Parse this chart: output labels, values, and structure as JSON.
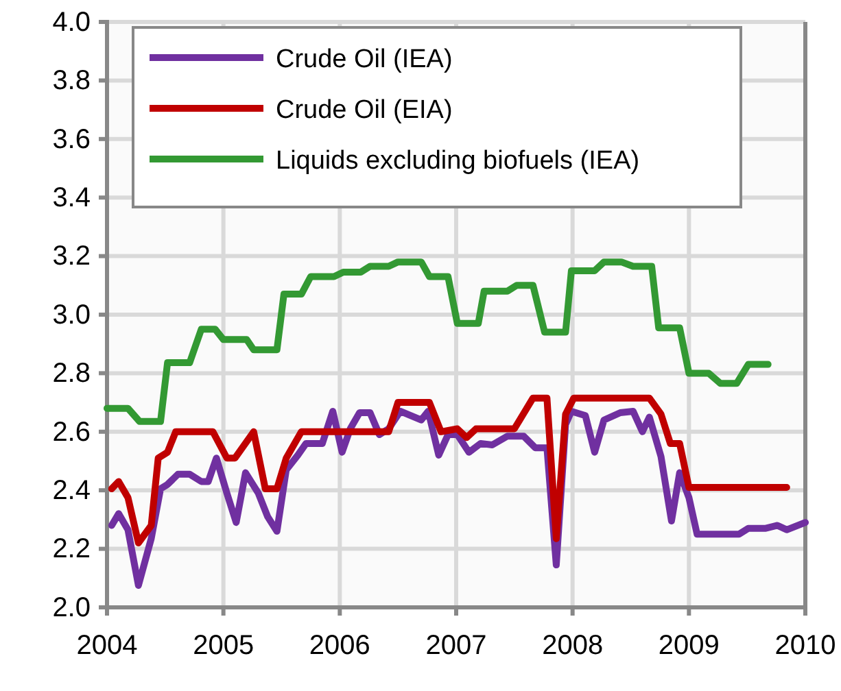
{
  "chart_data": {
    "type": "line",
    "xlim": [
      2004,
      2010
    ],
    "xticks": [
      2004,
      2005,
      2006,
      2007,
      2008,
      2009,
      2010
    ],
    "ylim": [
      2.0,
      4.0
    ],
    "yticks": [
      {
        "value": 2.0,
        "label": "2.0"
      },
      {
        "value": 2.2,
        "label": "2.2"
      },
      {
        "value": 2.4,
        "label": "2.4"
      },
      {
        "value": 2.6,
        "label": "2.6"
      },
      {
        "value": 2.8,
        "label": "2.8"
      },
      {
        "value": 3.0,
        "label": "3.0"
      },
      {
        "value": 3.2,
        "label": "3.2"
      },
      {
        "value": 3.4,
        "label": "3.4"
      },
      {
        "value": 3.6,
        "label": "3.6"
      },
      {
        "value": 3.8,
        "label": "3.8"
      },
      {
        "value": 4.0,
        "label": "4.0"
      }
    ],
    "grid": true,
    "legend": "top",
    "marker": "none",
    "line_style": "solid",
    "series": [
      {
        "name": "Crude Oil (IEA)",
        "color": "#7030a0",
        "x": [
          2004.04,
          2004.1,
          2004.18,
          2004.27,
          2004.38,
          2004.46,
          2004.52,
          2004.61,
          2004.71,
          2004.81,
          2004.87,
          2004.94,
          2005.03,
          2005.11,
          2005.19,
          2005.3,
          2005.38,
          2005.46,
          2005.54,
          2005.64,
          2005.71,
          2005.85,
          2005.94,
          2006.02,
          2006.09,
          2006.17,
          2006.26,
          2006.34,
          2006.42,
          2006.52,
          2006.7,
          2006.76,
          2006.85,
          2006.93,
          2007.01,
          2007.11,
          2007.21,
          2007.31,
          2007.44,
          2007.58,
          2007.68,
          2007.78,
          2007.86,
          2007.94,
          2007.99,
          2008.11,
          2008.19,
          2008.27,
          2008.41,
          2008.52,
          2008.6,
          2008.66,
          2008.76,
          2008.85,
          2008.92,
          2009.0,
          2009.07,
          2009.43,
          2009.51,
          2009.66,
          2009.76,
          2009.84,
          2010.0
        ],
        "values": [
          2.28,
          2.32,
          2.265,
          2.075,
          2.235,
          2.405,
          2.42,
          2.455,
          2.455,
          2.43,
          2.43,
          2.51,
          2.39,
          2.29,
          2.46,
          2.39,
          2.31,
          2.26,
          2.47,
          2.52,
          2.56,
          2.56,
          2.67,
          2.53,
          2.61,
          2.665,
          2.665,
          2.59,
          2.61,
          2.67,
          2.64,
          2.67,
          2.52,
          2.59,
          2.59,
          2.53,
          2.56,
          2.555,
          2.585,
          2.585,
          2.545,
          2.545,
          2.145,
          2.625,
          2.67,
          2.655,
          2.53,
          2.64,
          2.665,
          2.67,
          2.6,
          2.65,
          2.515,
          2.295,
          2.46,
          2.375,
          2.25,
          2.25,
          2.27,
          2.27,
          2.28,
          2.265,
          2.29
        ]
      },
      {
        "name": "Crude Oil (EIA)",
        "color": "#c00000",
        "x": [
          2004.04,
          2004.1,
          2004.18,
          2004.27,
          2004.38,
          2004.44,
          2004.52,
          2004.59,
          2004.91,
          2005.03,
          2005.1,
          2005.26,
          2005.36,
          2005.46,
          2005.54,
          2005.67,
          2006.42,
          2006.5,
          2006.77,
          2006.87,
          2007.01,
          2007.09,
          2007.17,
          2007.5,
          2007.66,
          2007.78,
          2007.86,
          2007.94,
          2008.01,
          2008.66,
          2008.76,
          2008.84,
          2008.92,
          2009.0,
          2009.84
        ],
        "values": [
          2.405,
          2.43,
          2.375,
          2.22,
          2.28,
          2.51,
          2.53,
          2.6,
          2.6,
          2.51,
          2.51,
          2.6,
          2.405,
          2.405,
          2.51,
          2.6,
          2.6,
          2.7,
          2.7,
          2.6,
          2.61,
          2.58,
          2.61,
          2.61,
          2.715,
          2.715,
          2.235,
          2.66,
          2.715,
          2.715,
          2.66,
          2.56,
          2.56,
          2.41,
          2.41
        ]
      },
      {
        "name": "Liquids excluding biofuels (IEA)",
        "color": "#339933",
        "x": [
          2004.0,
          2004.18,
          2004.28,
          2004.46,
          2004.52,
          2004.71,
          2004.81,
          2004.93,
          2005.0,
          2005.2,
          2005.26,
          2005.46,
          2005.52,
          2005.67,
          2005.75,
          2005.95,
          2006.03,
          2006.18,
          2006.26,
          2006.42,
          2006.5,
          2006.7,
          2006.77,
          2006.93,
          2007.01,
          2007.19,
          2007.24,
          2007.44,
          2007.52,
          2007.66,
          2007.76,
          2007.94,
          2007.99,
          2008.19,
          2008.27,
          2008.42,
          2008.52,
          2008.68,
          2008.74,
          2008.92,
          2009.0,
          2009.17,
          2009.27,
          2009.41,
          2009.51,
          2009.68
        ],
        "values": [
          2.68,
          2.68,
          2.635,
          2.635,
          2.836,
          2.836,
          2.95,
          2.95,
          2.915,
          2.915,
          2.88,
          2.88,
          3.07,
          3.07,
          3.13,
          3.13,
          3.145,
          3.145,
          3.165,
          3.165,
          3.18,
          3.18,
          3.13,
          3.13,
          2.97,
          2.97,
          3.08,
          3.08,
          3.1,
          3.1,
          2.94,
          2.94,
          3.15,
          3.15,
          3.18,
          3.18,
          3.165,
          3.165,
          2.955,
          2.955,
          2.8,
          2.8,
          2.765,
          2.765,
          2.83,
          2.83
        ]
      }
    ]
  }
}
